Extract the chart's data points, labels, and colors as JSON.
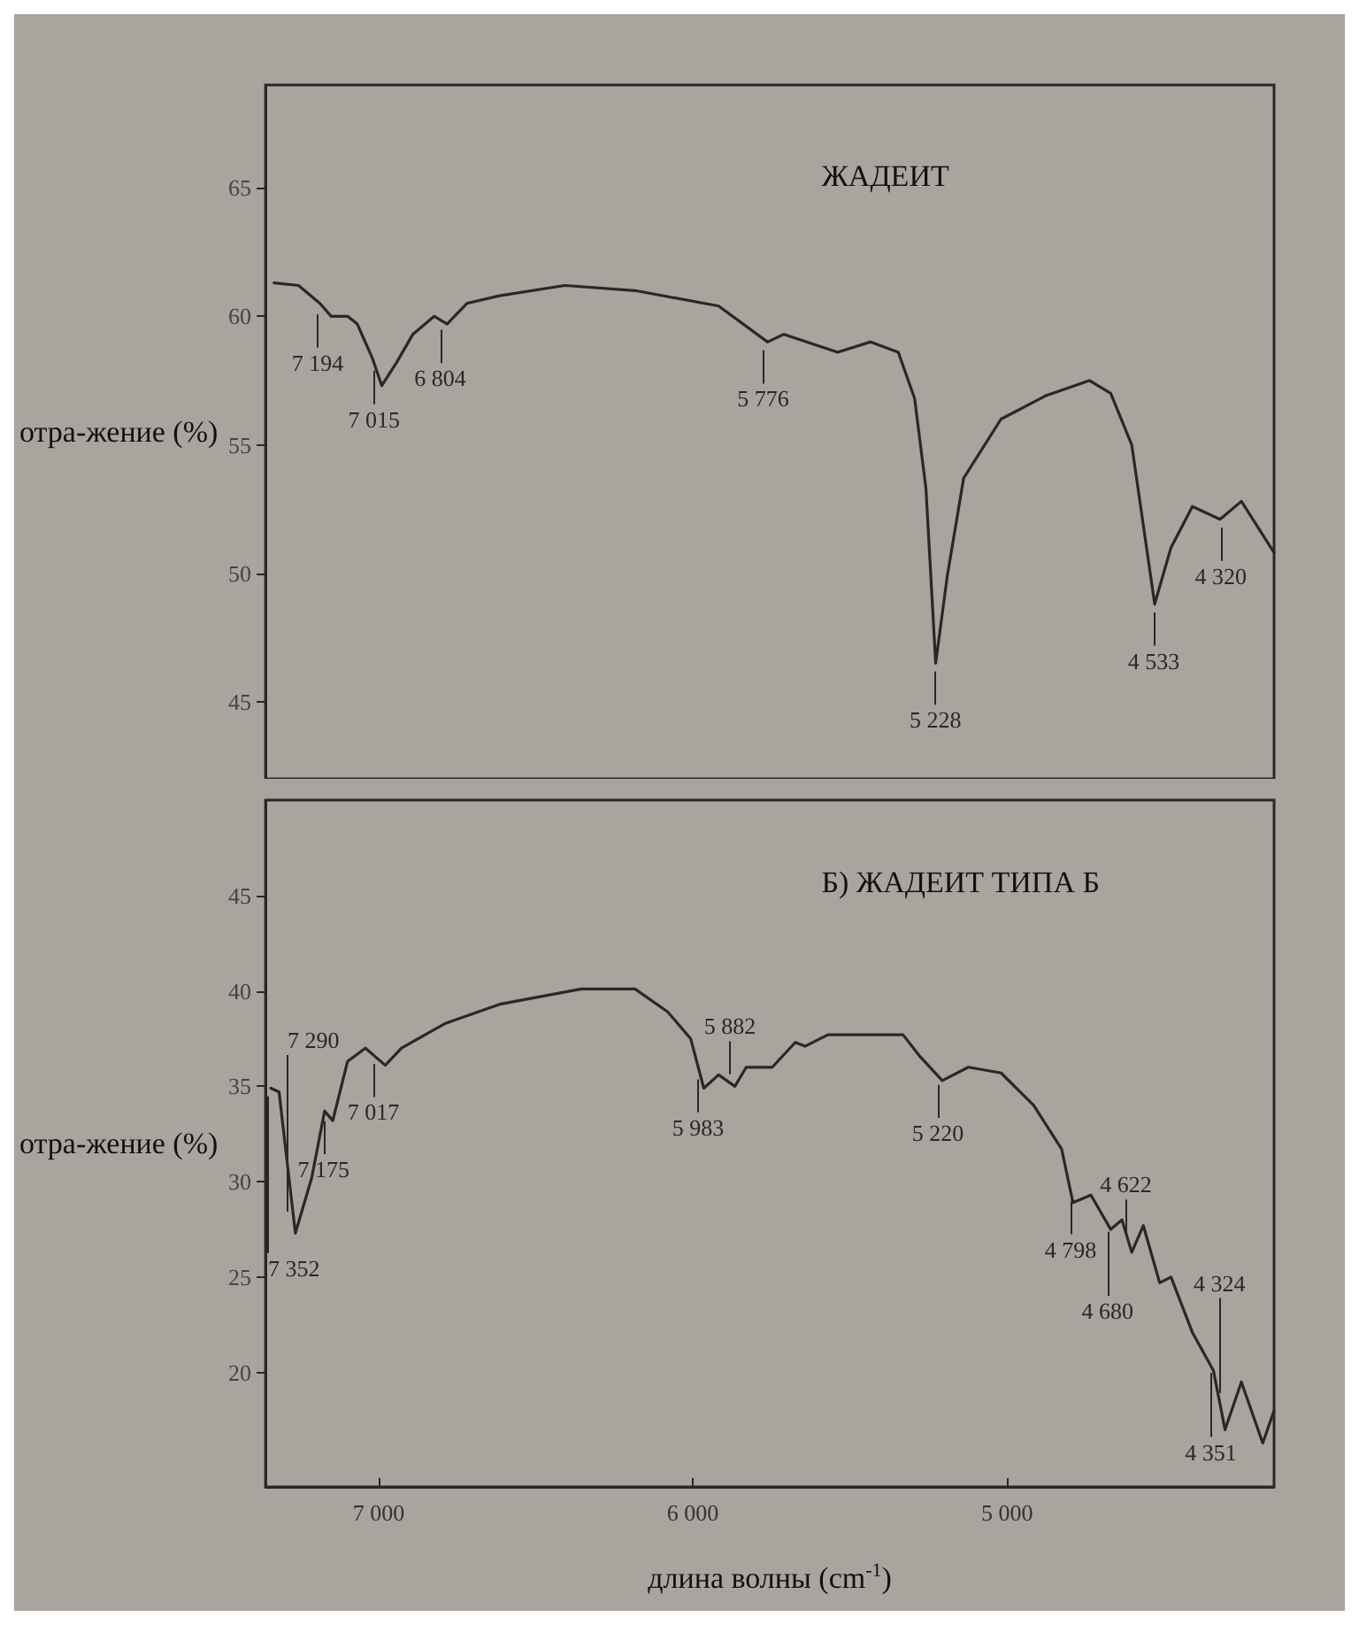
{
  "chart_data": [
    {
      "type": "line",
      "title": "ЖАДЕИТ",
      "ylabel": "отра-жение (%)",
      "xlim": [
        7360,
        4150
      ],
      "ylim": [
        42,
        69
      ],
      "yticks": [
        45,
        50,
        55,
        60,
        65
      ],
      "tick_labels": "y",
      "grid": false,
      "marker": "none",
      "line_style": "solid",
      "series": [
        {
          "color": "#2b2725",
          "x": [
            7333,
            7255,
            7187,
            7151,
            7099,
            7068,
            7021,
            6990,
            6943,
            6891,
            6823,
            6782,
            6719,
            6615,
            6407,
            6184,
            5918,
            5762,
            5710,
            5539,
            5435,
            5346,
            5294,
            5258,
            5227,
            5190,
            5138,
            5019,
            4878,
            4738,
            4670,
            4603,
            4530,
            4478,
            4410,
            4322,
            4254,
            4150
          ],
          "values": [
            61.3,
            61.2,
            60.5,
            60.0,
            60.0,
            59.7,
            58.4,
            57.3,
            58.2,
            59.3,
            60.0,
            59.7,
            60.5,
            60.8,
            61.2,
            61.0,
            60.4,
            59.0,
            59.3,
            58.6,
            59.0,
            58.6,
            56.8,
            53.3,
            46.5,
            49.9,
            53.7,
            56.0,
            56.9,
            57.5,
            57.0,
            55.0,
            48.8,
            51.0,
            52.6,
            52.1,
            52.8,
            50.8
          ]
        }
      ],
      "annotations": [
        {
          "text": "7 194",
          "x": 7194,
          "y": 60.4
        },
        {
          "text": "7 015",
          "x": 7015,
          "y": 58.2
        },
        {
          "text": "6 804",
          "x": 6804,
          "y": 59.8
        },
        {
          "text": "5 776",
          "x": 5776,
          "y": 59.0
        },
        {
          "text": "5 228",
          "x": 5228,
          "y": 46.5
        },
        {
          "text": "4 533",
          "x": 4533,
          "y": 48.8
        },
        {
          "text": "4 320",
          "x": 4320,
          "y": 52.1
        }
      ]
    },
    {
      "type": "line",
      "title": "Б) ЖАДЕИТ ТИПА Б",
      "ylabel": "отра-жение (%)",
      "xlabel": "длина волны (cm$^{-1}$)",
      "xlim": [
        7360,
        4150
      ],
      "xticks": [
        {
          "value": 7000,
          "label": "7 000"
        },
        {
          "value": 6000,
          "label": "6 000"
        },
        {
          "value": 5000,
          "label": "5 000"
        }
      ],
      "ylim": [
        14,
        50
      ],
      "yticks": [
        20,
        25,
        30,
        35,
        40,
        45
      ],
      "grid": false,
      "marker": "none",
      "line_style": "solid",
      "series": [
        {
          "color": "#2b2725",
          "x": [
            7343,
            7317,
            7265,
            7213,
            7172,
            7146,
            7099,
            7042,
            6979,
            6927,
            6787,
            6615,
            6355,
            6184,
            6080,
            6007,
            5965,
            5918,
            5866,
            5830,
            5747,
            5674,
            5643,
            5570,
            5331,
            5279,
            5206,
            5123,
            5019,
            4915,
            4826,
            4790,
            4733,
            4670,
            4634,
            4603,
            4566,
            4514,
            4478,
            4410,
            4343,
            4306,
            4254,
            4186,
            4150
          ],
          "values": [
            34.9,
            34.7,
            27.3,
            30.2,
            33.7,
            33.2,
            36.3,
            37.0,
            36.1,
            37.0,
            38.3,
            39.3,
            40.1,
            40.1,
            38.9,
            37.5,
            34.9,
            35.6,
            35.0,
            36.0,
            36.0,
            37.3,
            37.1,
            37.7,
            37.7,
            36.6,
            35.3,
            36.0,
            35.7,
            34.0,
            31.7,
            28.9,
            29.3,
            27.5,
            28.0,
            26.3,
            27.7,
            24.7,
            25.0,
            22.1,
            20.1,
            17.0,
            19.5,
            16.3,
            18.0
          ]
        }
      ],
      "annotations": [
        {
          "text": "7 352",
          "x": 7352,
          "y": 34.9
        },
        {
          "text": "7 290",
          "x": 7290,
          "y": 28.0
        },
        {
          "text": "7 175",
          "x": 7175,
          "y": 33.6
        },
        {
          "text": "7 017",
          "x": 7017,
          "y": 36.6
        },
        {
          "text": "5 983",
          "x": 5983,
          "y": 35.8
        },
        {
          "text": "5 882",
          "x": 5882,
          "y": 35.2
        },
        {
          "text": "5 220",
          "x": 5220,
          "y": 35.5
        },
        {
          "text": "4 798",
          "x": 4798,
          "y": 29.4
        },
        {
          "text": "4 680",
          "x": 4680,
          "y": 27.8
        },
        {
          "text": "4 622",
          "x": 4622,
          "y": 26.9
        },
        {
          "text": "4 351",
          "x": 4351,
          "y": 20.4
        },
        {
          "text": "4 324",
          "x": 4324,
          "y": 18.5
        }
      ]
    }
  ]
}
